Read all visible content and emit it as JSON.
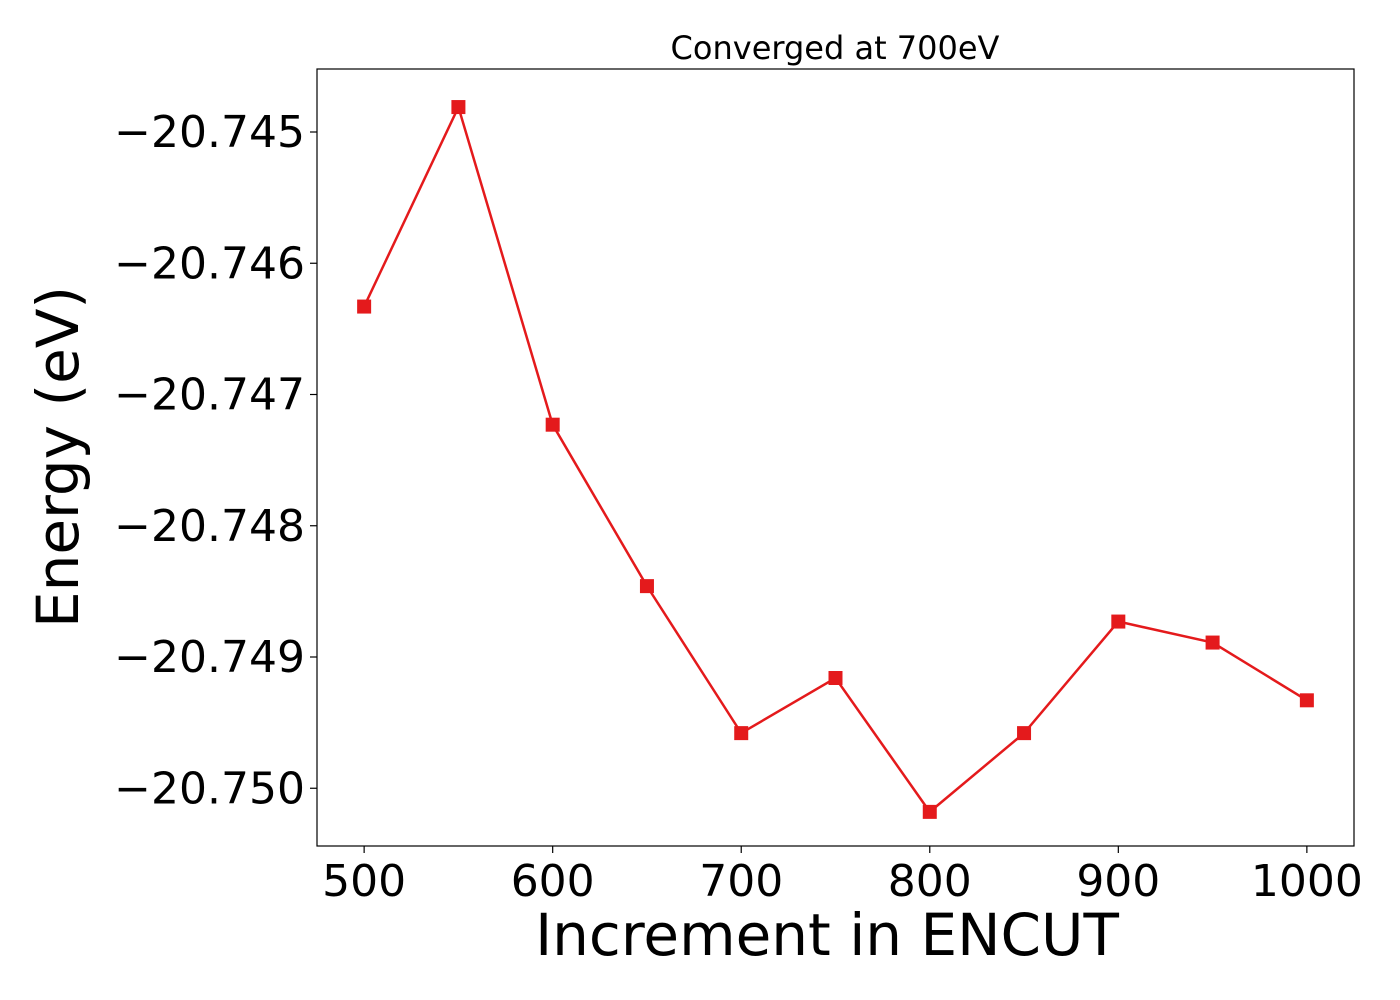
{
  "chart_data": {
    "type": "line",
    "title": "Converged at 700eV",
    "xlabel": "Increment in ENCUT",
    "ylabel": "Energy (eV)",
    "x": [
      500,
      550,
      600,
      650,
      700,
      750,
      800,
      850,
      900,
      950,
      1000
    ],
    "series": [
      {
        "values": [
          -20.74633,
          -20.74481,
          -20.74723,
          -20.74846,
          -20.74958,
          -20.74916,
          -20.75018,
          -20.74958,
          -20.74873,
          -20.74889,
          -20.74933
        ],
        "color": "#e41a1c",
        "marker": "square"
      }
    ],
    "xlim": [
      475,
      1025
    ],
    "ylim": [
      -20.75044,
      -20.74452
    ],
    "xticks": [
      500,
      600,
      700,
      800,
      900,
      1000
    ],
    "xtick_labels": [
      "500",
      "600",
      "700",
      "800",
      "900",
      "1000"
    ],
    "yticks": [
      -20.745,
      -20.746,
      -20.747,
      -20.748,
      -20.749,
      -20.75
    ],
    "ytick_labels": [
      "−20.745",
      "−20.746",
      "−20.747",
      "−20.748",
      "−20.749",
      "−20.750"
    ],
    "grid": false,
    "legend": "none"
  }
}
